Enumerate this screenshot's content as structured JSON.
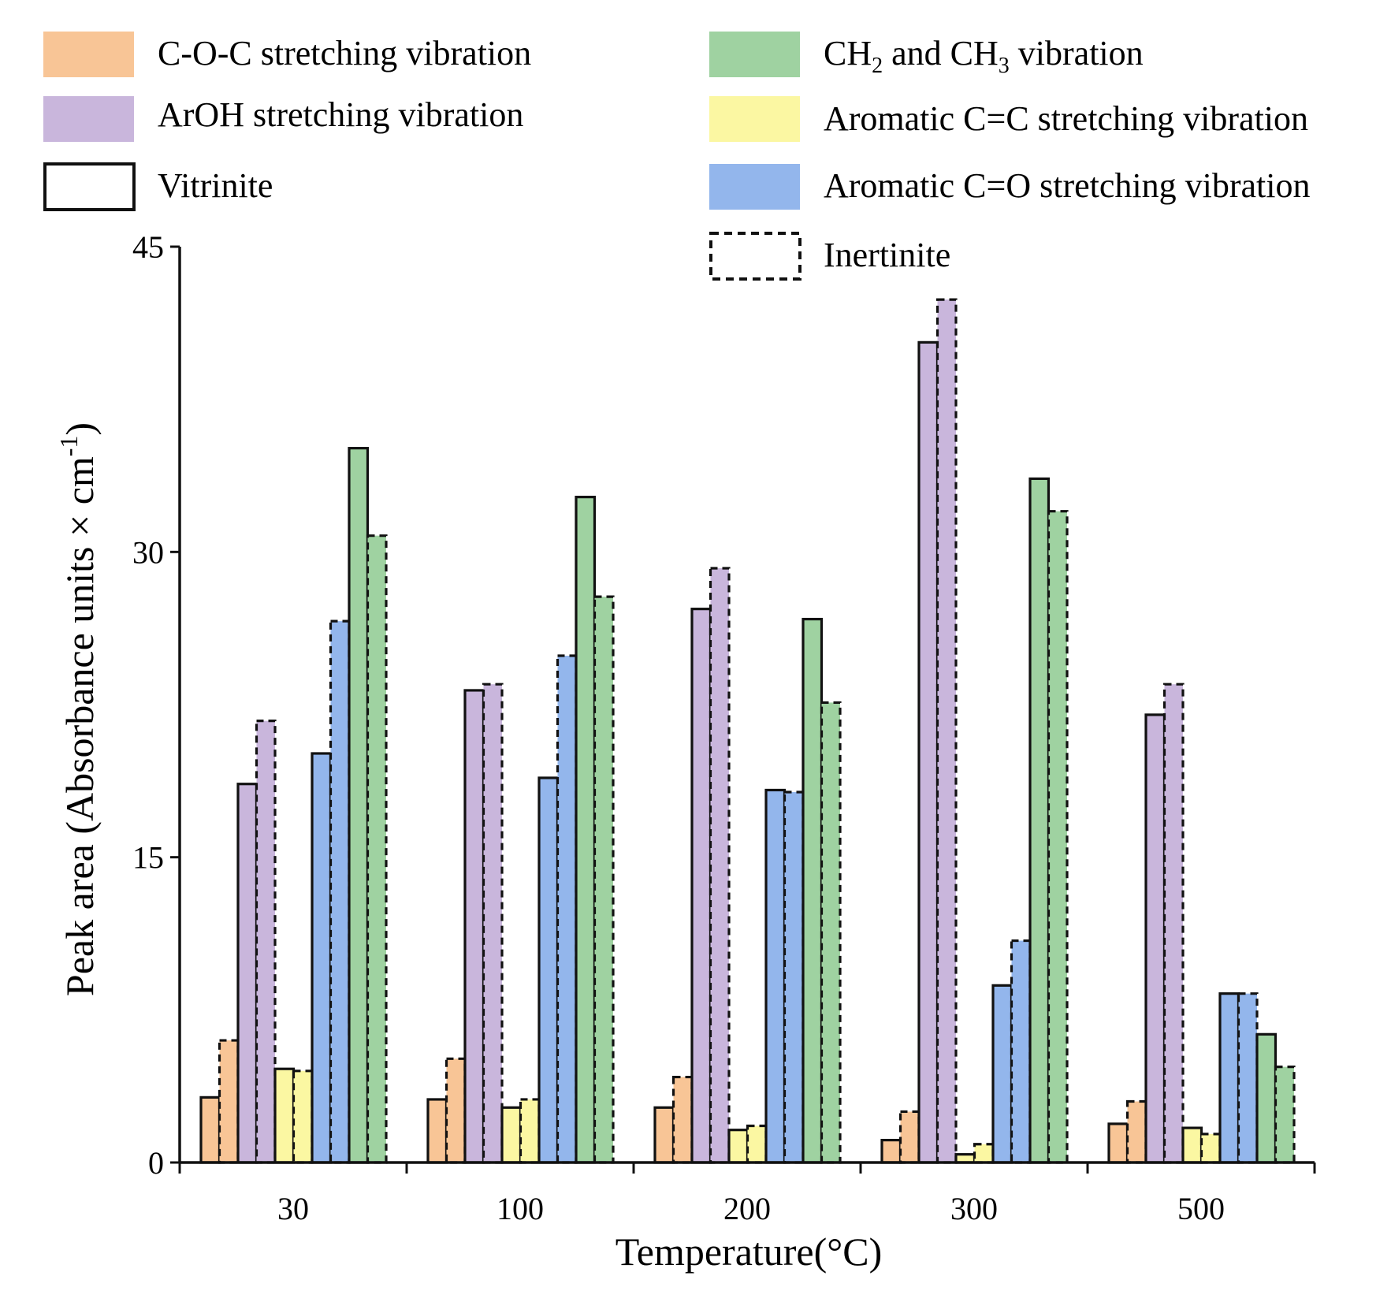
{
  "chart_data": {
    "type": "bar",
    "title": "",
    "xlabel": "Temperature(°C)",
    "ylabel": "Peak area (Absorbance units × cm",
    "ylabel_superscript": "-1",
    "ylabel_close": ")",
    "ylim": [
      0,
      45
    ],
    "yticks": [
      "0",
      "15",
      "30",
      "45"
    ],
    "grid": false,
    "categories": [
      "30",
      "100",
      "200",
      "300",
      "500"
    ],
    "maceral_types": [
      {
        "name": "Vitrinite",
        "line": "solid"
      },
      {
        "name": "Inertinite",
        "line": "dashed"
      }
    ],
    "series": [
      {
        "name": "C-O-C stretching vibration",
        "color": "#f8c596",
        "vitrinite": [
          3.2,
          3.1,
          2.7,
          1.1,
          1.9
        ],
        "inertinite": [
          6.0,
          5.1,
          4.2,
          2.5,
          3.0
        ]
      },
      {
        "name": "ArOH stretching vibration",
        "color": "#c9b6dc",
        "vitrinite": [
          18.6,
          23.2,
          27.2,
          40.3,
          22.0
        ],
        "inertinite": [
          21.7,
          23.5,
          29.2,
          42.4,
          23.5
        ]
      },
      {
        "name": "Aromatic C=C stretching vibration",
        "color": "#fbf7a2",
        "vitrinite": [
          4.6,
          2.7,
          1.6,
          0.4,
          1.7
        ],
        "inertinite": [
          4.5,
          3.1,
          1.8,
          0.9,
          1.4
        ]
      },
      {
        "name": "Aromatic C=O stretching vibration",
        "color": "#93b6ec",
        "vitrinite": [
          20.1,
          18.9,
          18.3,
          8.7,
          8.3
        ],
        "inertinite": [
          26.6,
          24.9,
          18.2,
          10.9,
          8.3
        ]
      },
      {
        "name": "CH2 and CH3 vibration",
        "color": "#9fd2a1",
        "vitrinite": [
          35.1,
          32.7,
          26.7,
          33.6,
          6.3
        ],
        "inertinite": [
          30.8,
          27.8,
          22.6,
          32.0,
          4.7
        ]
      }
    ],
    "legend": {
      "position": "top",
      "entries": [
        {
          "label": "C-O-C stretching vibration",
          "kind": "fill",
          "color": "#f8c596"
        },
        {
          "label": "ArOH stretching vibration",
          "kind": "fill",
          "color": "#c9b6dc"
        },
        {
          "label": "Vitrinite",
          "kind": "solid-outline"
        },
        {
          "label_parts": [
            "CH",
            "2",
            " and CH",
            "3",
            " vibration"
          ],
          "kind": "fill",
          "color": "#9fd2a1"
        },
        {
          "label": "Aromatic C=C stretching vibration",
          "kind": "fill",
          "color": "#fbf7a2"
        },
        {
          "label": "Aromatic C=O stretching vibration",
          "kind": "fill",
          "color": "#93b6ec"
        },
        {
          "label": "Inertinite",
          "kind": "dashed-outline"
        }
      ]
    }
  }
}
